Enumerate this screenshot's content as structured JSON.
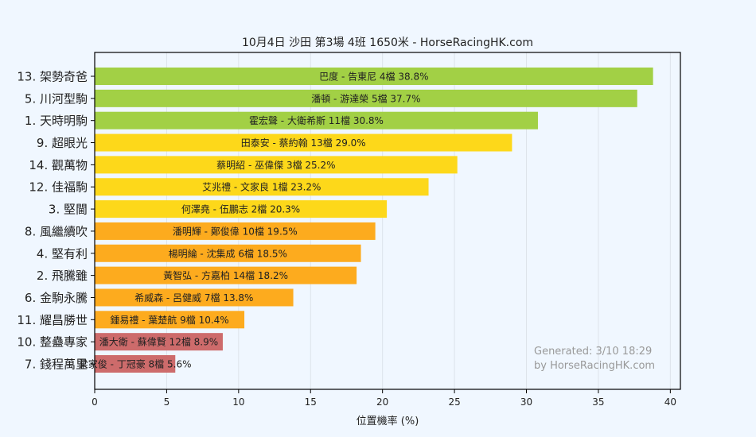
{
  "chart_data": {
    "type": "bar",
    "orientation": "horizontal",
    "title": "10月4日  沙田  第3場  4班  1650米 - HorseRacingHK.com",
    "xlabel": "位置機率 (%)",
    "ylabel": "",
    "xlim": [
      0,
      40.7
    ],
    "xticks": [
      "0",
      "5",
      "10",
      "15",
      "20",
      "25",
      "30",
      "35",
      "40"
    ],
    "grid": true,
    "colors": {
      "green": "#a2d045",
      "yellow": "#fdd81a",
      "orange": "#fdab1e",
      "red": "#cd6b6b"
    },
    "categories": [
      "13. 架勢奇爸",
      "5. 川河型駒",
      "1. 天時明駒",
      "9. 超眼光",
      "14. 觀萬物",
      "12. 佳福駒",
      "3. 堅閫",
      "8. 風繼續吹",
      "4. 堅有利",
      "2. 飛騰雖",
      "6. 金駒永騰",
      "11. 耀昌勝世",
      "10. 整蠱專家",
      "7. 錢程萬里"
    ],
    "values": [
      38.8,
      37.7,
      30.8,
      29.0,
      25.2,
      23.2,
      20.3,
      19.5,
      18.5,
      18.2,
      13.8,
      10.4,
      8.9,
      5.6
    ],
    "bar_colors": [
      "green",
      "green",
      "green",
      "yellow",
      "yellow",
      "yellow",
      "yellow",
      "orange",
      "orange",
      "orange",
      "orange",
      "orange",
      "red",
      "red"
    ],
    "data_labels": [
      "巴度 - 告東尼 4檔  38.8%",
      "潘頓 - 游達榮 5檔  37.7%",
      "霍宏聲 - 大衛希斯 11檔  30.8%",
      "田泰安 - 蔡約翰 13檔  29.0%",
      "蔡明紹 - 巫偉傑 3檔  25.2%",
      "艾兆禮 - 文家良 1檔  23.2%",
      "何澤堯 - 伍鵬志 2檔  20.3%",
      "潘明輝 - 鄭俊偉 10檔  19.5%",
      "楊明綸 - 沈集成 6檔  18.5%",
      "黃智弘 - 方嘉柏 14檔  18.2%",
      "希威森 - 呂健威 7檔  13.8%",
      "鍾易禮 - 葉楚航 9檔  10.4%",
      "潘大衛 - 蘇偉賢 12檔  8.9%",
      "梁家俊 - 丁冠豪 8檔  5.6%"
    ],
    "annotation": [
      "Generated: 3/10 18:29",
      "by HorseRacingHK.com"
    ]
  }
}
